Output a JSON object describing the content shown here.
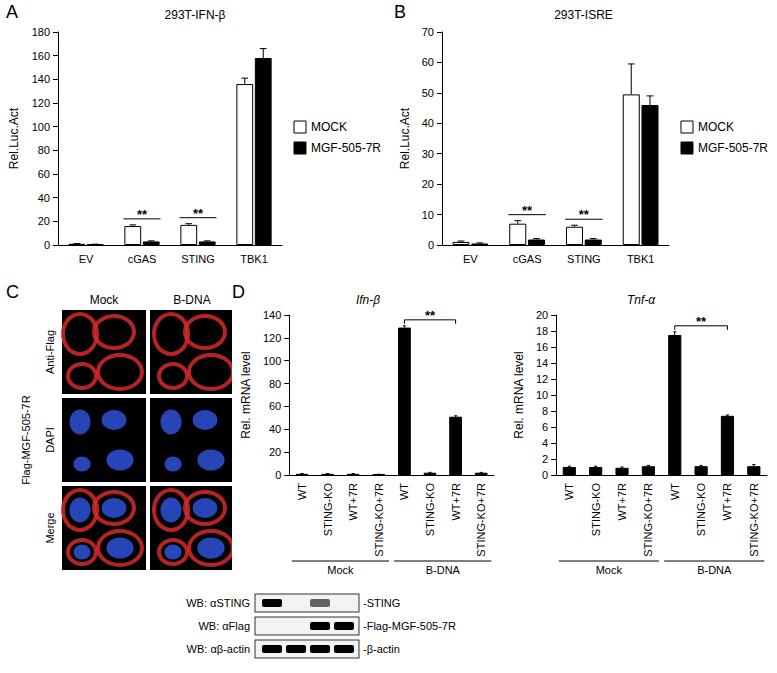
{
  "panel_labels": [
    "A",
    "B",
    "C",
    "D"
  ],
  "chart_data": [
    {
      "type": "bar",
      "title": "293T-IFN-β",
      "y_label": "Rel.Luc.Act",
      "categories": [
        "EV",
        "cGAS",
        "STING",
        "TBK1"
      ],
      "series": [
        {
          "name": "MOCK",
          "color": "#ffffff",
          "values": [
            1,
            16,
            17,
            136
          ],
          "errors": [
            0.2,
            1,
            1,
            5
          ]
        },
        {
          "name": "MGF-505-7R",
          "color": "#000000",
          "values": [
            0.5,
            3,
            3,
            158
          ],
          "errors": [
            0.2,
            0.5,
            0.5,
            8
          ]
        }
      ],
      "ylim": [
        0,
        180
      ],
      "yticks": [
        0,
        20,
        40,
        60,
        80,
        100,
        120,
        140,
        160,
        180
      ],
      "grid": false,
      "legend": "right",
      "annotations": [
        {
          "text": "**",
          "from": 1,
          "to": 1
        },
        {
          "text": "**",
          "from": 2,
          "to": 2
        }
      ]
    },
    {
      "type": "bar",
      "title": "293T-ISRE",
      "y_label": "Rel.Luc.Act",
      "categories": [
        "EV",
        "cGAS",
        "STING",
        "TBK1"
      ],
      "series": [
        {
          "name": "MOCK",
          "color": "#ffffff",
          "values": [
            1,
            7,
            6,
            49.5
          ],
          "errors": [
            0.3,
            1,
            0.5,
            10
          ]
        },
        {
          "name": "MGF-505-7R",
          "color": "#000000",
          "values": [
            0.5,
            1.8,
            1.8,
            46
          ],
          "errors": [
            0.2,
            0.3,
            0.3,
            3
          ]
        }
      ],
      "ylim": [
        0,
        70
      ],
      "yticks": [
        0,
        10,
        20,
        30,
        40,
        50,
        60,
        70
      ],
      "grid": false,
      "legend": "right",
      "annotations": [
        {
          "text": "**",
          "from": 1,
          "to": 1
        },
        {
          "text": "**",
          "from": 2,
          "to": 2
        }
      ]
    },
    {
      "type": "bar",
      "title": "Ifn-β",
      "y_label": "Rel. mRNA level",
      "categories": [
        "WT",
        "STING-KO",
        "WT+7R",
        "STING-KO+7R",
        "WT",
        "STING-KO",
        "WT+7R",
        "STING-KO+7R"
      ],
      "series": [
        {
          "color": "#000000",
          "values": [
            1,
            1,
            1,
            0.5,
            129,
            2,
            51,
            2
          ],
          "errors": [
            0.3,
            0.3,
            0.3,
            0.2,
            1.5,
            0.3,
            0.8,
            0.3
          ]
        }
      ],
      "ylim": [
        0,
        140
      ],
      "yticks": [
        0,
        20,
        40,
        60,
        80,
        100,
        120,
        140
      ],
      "grid": false,
      "annotations": [
        {
          "text": "**",
          "from": 4,
          "to": 6
        }
      ],
      "groups": [
        {
          "label": "Mock",
          "from": 0,
          "to": 3
        },
        {
          "label": "B-DNA",
          "from": 4,
          "to": 7
        }
      ]
    },
    {
      "type": "bar",
      "title": "Tnf-α",
      "y_label": "Rel. mRNA level",
      "categories": [
        "WT",
        "STING-KO",
        "WT+7R",
        "STING-KO+7R",
        "WT",
        "STING-KO",
        "WT+7R",
        "STING-KO+7R"
      ],
      "series": [
        {
          "color": "#000000",
          "values": [
            1,
            1,
            0.9,
            1.1,
            17.5,
            1.1,
            7.4,
            1.1
          ],
          "errors": [
            0.1,
            0.1,
            0.1,
            0.1,
            0.4,
            0.1,
            0.1,
            0.2
          ]
        }
      ],
      "ylim": [
        0,
        20
      ],
      "yticks": [
        0,
        2,
        4,
        6,
        8,
        10,
        12,
        14,
        16,
        18,
        20
      ],
      "grid": false,
      "annotations": [
        {
          "text": "**",
          "from": 4,
          "to": 6
        }
      ],
      "groups": [
        {
          "label": "Mock",
          "from": 0,
          "to": 3
        },
        {
          "label": "B-DNA",
          "from": 4,
          "to": 7
        }
      ]
    }
  ],
  "microscopy": {
    "side_label": "Flag-MGF-505-7R",
    "columns": [
      "Mock",
      "B-DNA"
    ],
    "rows": [
      "Anti-Flag",
      "DAPI",
      "Merge"
    ]
  },
  "western_blot": {
    "rows": [
      {
        "label": "WB: αSTING",
        "band": "-STING",
        "lanes": [
          1,
          0,
          0.6,
          0
        ]
      },
      {
        "label": "WB: αFlag",
        "band": "-Flag-MGF-505-7R",
        "lanes": [
          0,
          0,
          1,
          1
        ]
      },
      {
        "label": "WB: αβ-actin",
        "band": "-β-actin",
        "lanes": [
          1,
          1,
          1,
          1
        ]
      }
    ]
  }
}
